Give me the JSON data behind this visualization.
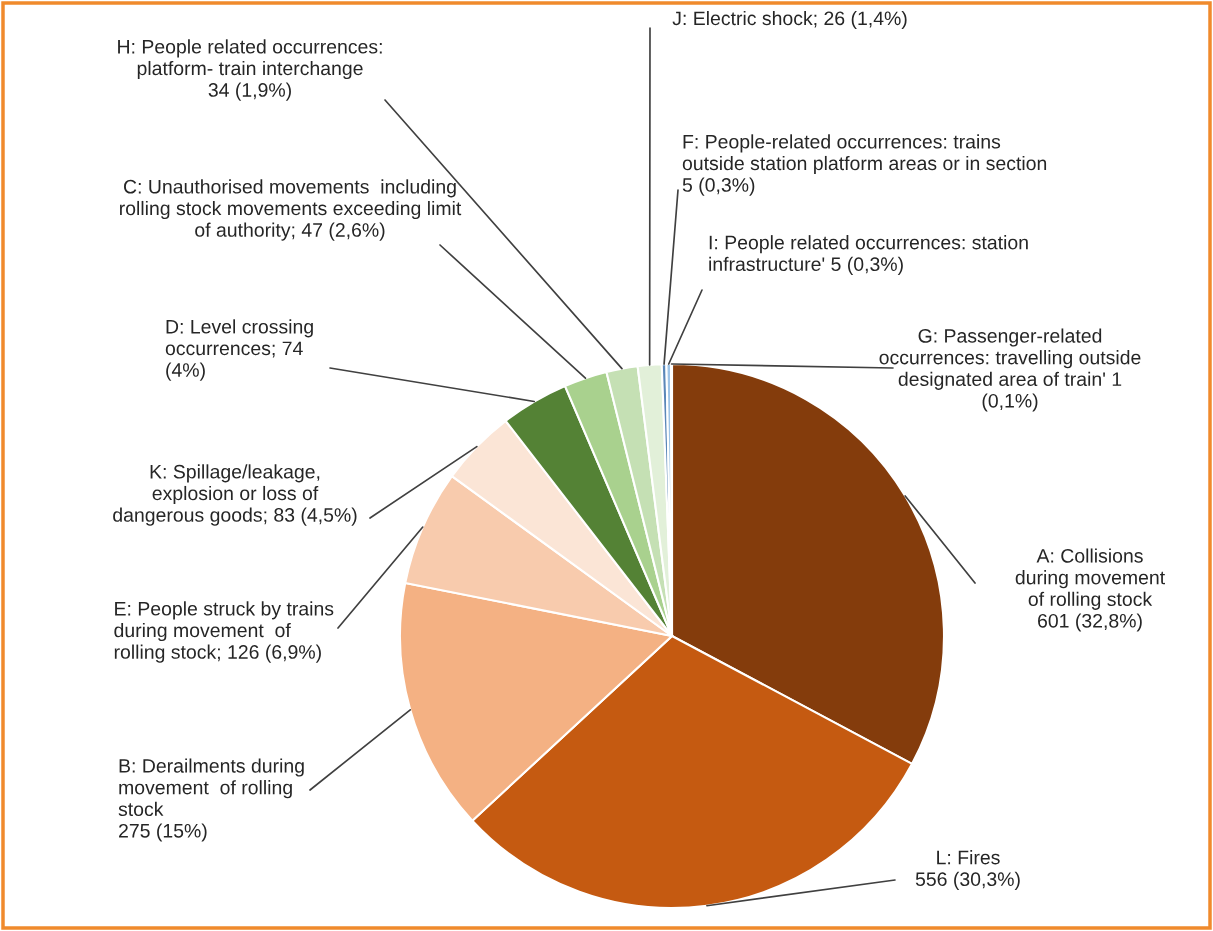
{
  "chart_data": {
    "type": "pie",
    "categories": [
      "A: Collisions\nduring movement\nof rolling stock\n601 (32,8%)",
      "L: Fires\n556 (30,3%)",
      "B: Derailments during\nmovement  of rolling\nstock\n275 (15%)",
      "E: People struck by trains\nduring movement  of\nrolling stock; 126 (6,9%)",
      "K: Spillage/leakage,\nexplosion or loss of\ndangerous goods; 83 (4,5%)",
      "D: Level crossing\noccurrences; 74\n(4%)",
      "C: Unauthorised movements  including\nrolling stock movements exceeding limit\nof authority; 47 (2,6%)",
      "H: People related occurrences:\nplatform- train interchange\n34 (1,9%)",
      "J: Electric shock; 26 (1,4%)",
      "F: People-related occurrences: trains\noutside station platform areas or in section\n5 (0,3%)",
      "I: People related occurrences: station\ninfrastructure' 5 (0,3%)",
      "G: Passenger-related\noccurrences: travelling outside\ndesignated area of train' 1\n(0,1%)"
    ],
    "values": [
      601,
      556,
      275,
      126,
      83,
      74,
      47,
      34,
      26,
      5,
      5,
      1
    ],
    "colors": [
      "#843c0c",
      "#c55a11",
      "#f4b183",
      "#f8cbad",
      "#fbe5d6",
      "#548235",
      "#a9d18e",
      "#c5e0b4",
      "#e2f0d9",
      "#5b87b8",
      "#9dc3e6",
      "#2f5597"
    ]
  }
}
